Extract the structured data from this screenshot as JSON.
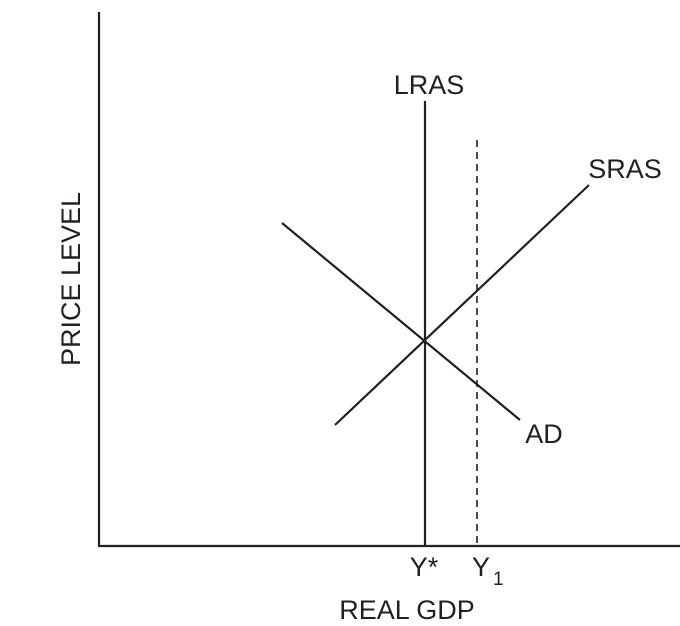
{
  "diagram": {
    "y_axis_label": "PRICE LEVEL",
    "x_axis_label": "REAL GDP",
    "curves": {
      "lras": "LRAS",
      "sras": "SRAS",
      "ad": "AD"
    },
    "x_ticks": {
      "y_star": "Y*",
      "y1_main": "Y",
      "y1_sub": "1"
    }
  }
}
